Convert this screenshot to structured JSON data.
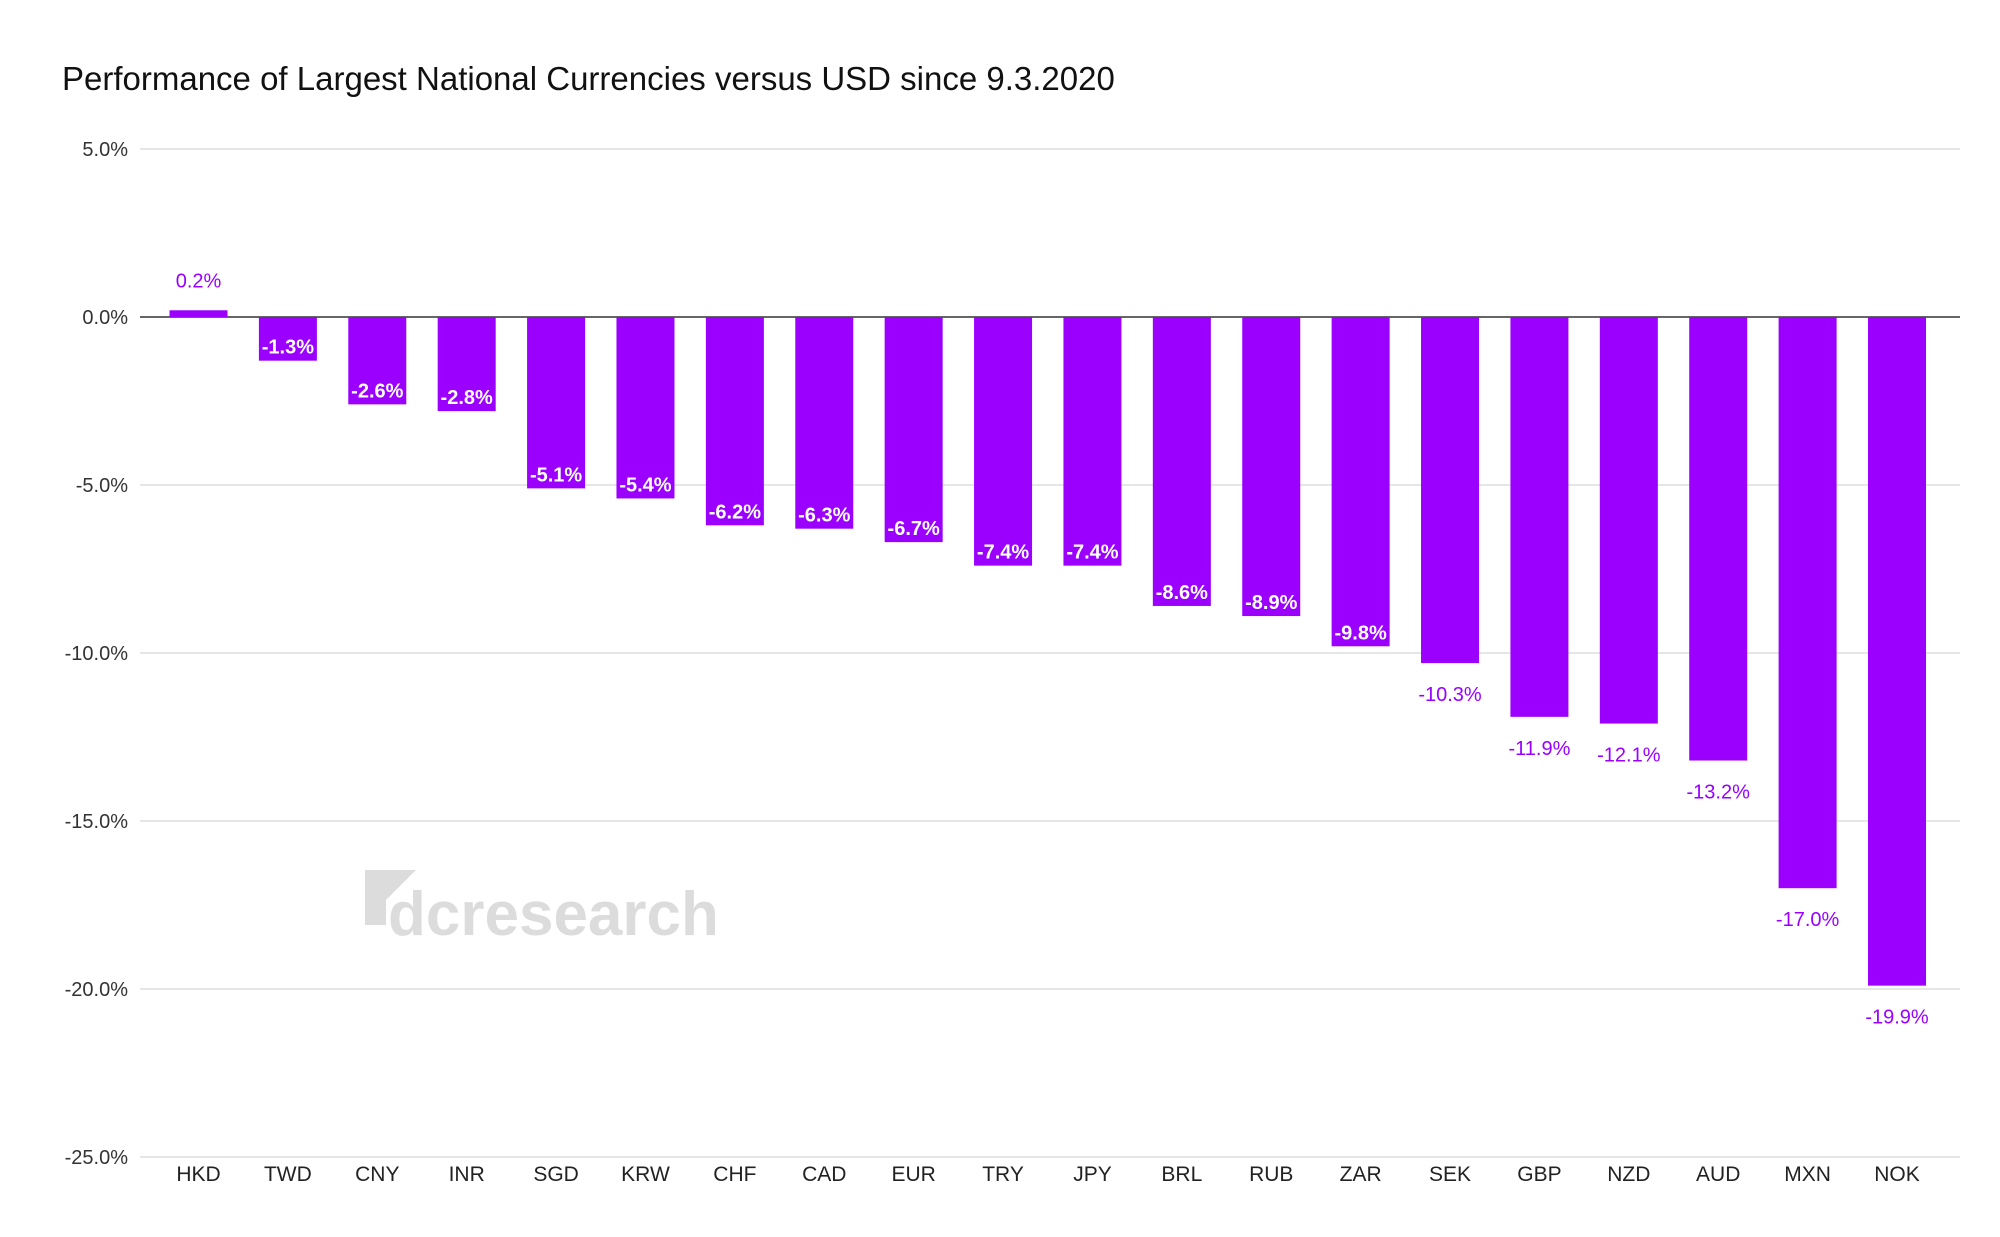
{
  "chart_data": {
    "type": "bar",
    "title": "Performance of Largest National Currencies versus USD since 9.3.2020",
    "xlabel": "",
    "ylabel": "",
    "categories": [
      "HKD",
      "TWD",
      "CNY",
      "INR",
      "SGD",
      "KRW",
      "CHF",
      "CAD",
      "EUR",
      "TRY",
      "JPY",
      "BRL",
      "RUB",
      "ZAR",
      "SEK",
      "GBP",
      "NZD",
      "AUD",
      "MXN",
      "NOK"
    ],
    "values": [
      0.2,
      -1.3,
      -2.6,
      -2.8,
      -5.1,
      -5.4,
      -6.2,
      -6.3,
      -6.7,
      -7.4,
      -7.4,
      -8.6,
      -8.9,
      -9.8,
      -10.3,
      -11.9,
      -12.1,
      -13.2,
      -17.0,
      -19.9
    ],
    "data_labels": [
      "0.2%",
      "-1.3%",
      "-2.6%",
      "-2.8%",
      "-5.1%",
      "-5.4%",
      "-6.2%",
      "-6.3%",
      "-6.7%",
      "-7.4%",
      "-7.4%",
      "-8.6%",
      "-8.9%",
      "-9.8%",
      "-10.3%",
      "-11.9%",
      "-12.1%",
      "-13.2%",
      "-17.0%",
      "-19.9%"
    ],
    "ylim": [
      -25,
      5
    ],
    "yticks": [
      5,
      0,
      -5,
      -10,
      -15,
      -20,
      -25
    ],
    "ytick_labels": [
      "5.0%",
      "0.0%",
      "-5.0%",
      "-10.0%",
      "-15.0%",
      "-20.0%",
      "-25.0%"
    ],
    "grid": true,
    "legend": "none",
    "bar_color": "#9b00ff",
    "watermark": "dcresearch"
  }
}
